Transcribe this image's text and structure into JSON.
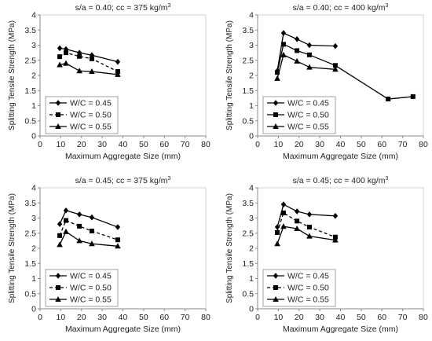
{
  "chart_data": [
    {
      "type": "line",
      "title_main": "s/a = 0.40; cc = 375 kg/m",
      "title_sup": "3",
      "xlabel": "Maximum Aggregate Size (mm)",
      "ylabel": "Splitting Tensile Strength (MPa)",
      "xlim": [
        0,
        80
      ],
      "ylim": [
        0,
        4
      ],
      "xticks": [
        "0",
        "10",
        "20",
        "30",
        "40",
        "50",
        "60",
        "70",
        "80"
      ],
      "yticks": [
        "0",
        "0.5",
        "1",
        "1.5",
        "2",
        "2.5",
        "3",
        "3.5",
        "4"
      ],
      "legend_position": "bottom-left",
      "grid": false,
      "series": [
        {
          "name": "W/C = 0.45",
          "marker": "diamond",
          "line": "solid",
          "points": [
            [
              9.5,
              2.9
            ],
            [
              12.5,
              2.87
            ],
            [
              19,
              2.75
            ],
            [
              25,
              2.67
            ],
            [
              37.5,
              2.45
            ]
          ]
        },
        {
          "name": "W/C = 0.50",
          "marker": "square",
          "line": "dashed",
          "points": [
            [
              9.5,
              2.62
            ],
            [
              12.5,
              2.75
            ],
            [
              19,
              2.63
            ],
            [
              25,
              2.55
            ],
            [
              37.5,
              2.13
            ]
          ]
        },
        {
          "name": "W/C = 0.55",
          "marker": "triangle",
          "line": "solid",
          "points": [
            [
              9.5,
              2.35
            ],
            [
              12.5,
              2.4
            ],
            [
              19,
              2.15
            ],
            [
              25,
              2.13
            ],
            [
              37.5,
              2.03
            ]
          ]
        }
      ]
    },
    {
      "type": "line",
      "title_main": "s/a = 0.40; cc = 400 kg/m",
      "title_sup": "3",
      "xlabel": "Maximum Aggregate Size (mm)",
      "ylabel": "Splitting Tensile Strength (MPa)",
      "xlim": [
        0,
        80
      ],
      "ylim": [
        0,
        4
      ],
      "xticks": [
        "0",
        "10",
        "20",
        "30",
        "40",
        "50",
        "60",
        "70",
        "80"
      ],
      "yticks": [
        "0",
        "0.5",
        "1",
        "1.5",
        "2",
        "2.5",
        "3",
        "3.5",
        "4"
      ],
      "legend_position": "bottom-left",
      "grid": false,
      "series": [
        {
          "name": "W/C = 0.45",
          "marker": "diamond",
          "line": "solid",
          "points": [
            [
              9.5,
              2.15
            ],
            [
              12.5,
              3.4
            ],
            [
              19,
              3.2
            ],
            [
              25,
              3.0
            ],
            [
              37.5,
              2.97
            ]
          ]
        },
        {
          "name": "W/C = 0.50",
          "marker": "square",
          "line": "solid",
          "points": [
            [
              9.5,
              2.1
            ],
            [
              12.5,
              3.03
            ],
            [
              19,
              2.82
            ],
            [
              25,
              2.68
            ],
            [
              37.5,
              2.33
            ],
            [
              63,
              1.22
            ],
            [
              75,
              1.3
            ]
          ]
        },
        {
          "name": "W/C = 0.55",
          "marker": "triangle",
          "line": "solid",
          "points": [
            [
              9.5,
              1.9
            ],
            [
              12.5,
              2.68
            ],
            [
              19,
              2.47
            ],
            [
              25,
              2.27
            ],
            [
              37.5,
              2.2
            ]
          ]
        }
      ]
    },
    {
      "type": "line",
      "title_main": "s/a = 0.45; cc = 375 kg/m",
      "title_sup": "3",
      "xlabel": "Maximum Aggregate Size (mm)",
      "ylabel": "Splitting Tensile Strength (MPa)",
      "xlim": [
        0,
        80
      ],
      "ylim": [
        0,
        4
      ],
      "xticks": [
        "0",
        "10",
        "20",
        "30",
        "40",
        "50",
        "60",
        "70",
        "80"
      ],
      "yticks": [
        "0",
        "0.5",
        "1",
        "1.5",
        "2",
        "2.5",
        "3",
        "3.5",
        "4"
      ],
      "legend_position": "bottom-left",
      "grid": false,
      "series": [
        {
          "name": "W/C = 0.45",
          "marker": "diamond",
          "line": "solid",
          "points": [
            [
              9.5,
              2.8
            ],
            [
              12.5,
              3.25
            ],
            [
              19,
              3.12
            ],
            [
              25,
              3.02
            ],
            [
              37.5,
              2.7
            ]
          ]
        },
        {
          "name": "W/C = 0.50",
          "marker": "square",
          "line": "dashed",
          "points": [
            [
              9.5,
              2.42
            ],
            [
              12.5,
              2.92
            ],
            [
              19,
              2.73
            ],
            [
              25,
              2.57
            ],
            [
              37.5,
              2.28
            ]
          ]
        },
        {
          "name": "W/C = 0.55",
          "marker": "triangle",
          "line": "solid",
          "points": [
            [
              9.5,
              2.12
            ],
            [
              12.5,
              2.55
            ],
            [
              19,
              2.25
            ],
            [
              25,
              2.15
            ],
            [
              37.5,
              2.07
            ]
          ]
        }
      ]
    },
    {
      "type": "line",
      "title_main": "s/a = 0.45; cc = 400 kg/m",
      "title_sup": "3",
      "xlabel": "Maximum Aggregate Size (mm)",
      "ylabel": "Splitting Tensile Strength (MPa)",
      "xlim": [
        0,
        80
      ],
      "ylim": [
        0,
        4
      ],
      "xticks": [
        "0",
        "10",
        "20",
        "30",
        "40",
        "50",
        "60",
        "70",
        "80"
      ],
      "yticks": [
        "0",
        "0.5",
        "1",
        "1.5",
        "2",
        "2.5",
        "3",
        "3.5",
        "4"
      ],
      "legend_position": "bottom-left",
      "grid": false,
      "series": [
        {
          "name": "W/C = 0.45",
          "marker": "diamond",
          "line": "solid",
          "points": [
            [
              9.5,
              2.7
            ],
            [
              12.5,
              3.45
            ],
            [
              19,
              3.22
            ],
            [
              25,
              3.12
            ],
            [
              37.5,
              3.07
            ]
          ]
        },
        {
          "name": "W/C = 0.50",
          "marker": "square",
          "line": "dashed",
          "points": [
            [
              9.5,
              2.52
            ],
            [
              12.5,
              3.17
            ],
            [
              19,
              2.9
            ],
            [
              25,
              2.7
            ],
            [
              37.5,
              2.37
            ]
          ]
        },
        {
          "name": "W/C = 0.55",
          "marker": "triangle",
          "line": "solid",
          "points": [
            [
              9.5,
              2.15
            ],
            [
              12.5,
              2.72
            ],
            [
              19,
              2.65
            ],
            [
              25,
              2.4
            ],
            [
              37.5,
              2.27
            ]
          ]
        }
      ]
    }
  ]
}
